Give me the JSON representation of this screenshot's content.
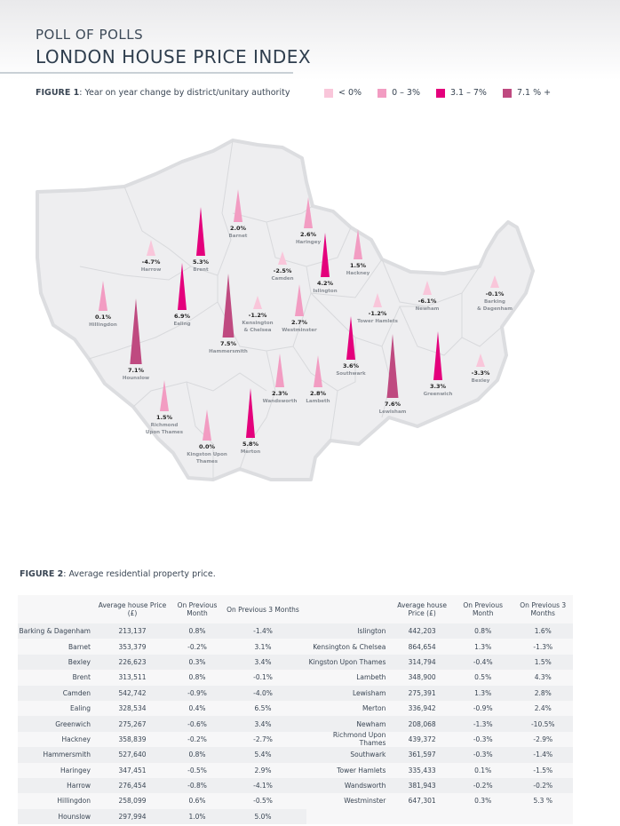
{
  "header": {
    "kicker": "POLL OF POLLS",
    "title": "LONDON HOUSE PRICE INDEX"
  },
  "figure1": {
    "label": "FIGURE 1",
    "caption": ": Year on year change by district/unitary authority"
  },
  "chart_data": [
    {
      "type": "map",
      "title": "Year on year change by district/unitary authority",
      "legend": [
        {
          "label": "< 0%",
          "color": "#f9c6da"
        },
        {
          "label": "0 – 3%",
          "color": "#f29cc2"
        },
        {
          "label": "3.1 – 7%",
          "color": "#e4007c"
        },
        {
          "label": "7.1 % +",
          "color": "#bf4a80"
        }
      ],
      "districts": [
        {
          "name": "Harrow",
          "value": "-4.7%",
          "v": -4.7
        },
        {
          "name": "Barnet",
          "value": "2.0%",
          "v": 2.0
        },
        {
          "name": "Haringey",
          "value": "2.6%",
          "v": 2.6
        },
        {
          "name": "Brent",
          "value": "5.3%",
          "v": 5.3
        },
        {
          "name": "Camden",
          "value": "-2.5%",
          "v": -2.5
        },
        {
          "name": "Islington",
          "value": "4.2%",
          "v": 4.2
        },
        {
          "name": "Hackney",
          "value": "1.5%",
          "v": 1.5
        },
        {
          "name": "Hillingdon",
          "value": "0.1%",
          "v": 0.1
        },
        {
          "name": "Ealing",
          "value": "6.9%",
          "v": 6.9
        },
        {
          "name": "Hammersmith",
          "value": "7.5%",
          "v": 7.5
        },
        {
          "name": "Kensington & Chelsea",
          "value": "-1.2%",
          "v": -1.2
        },
        {
          "name": "Westminster",
          "value": "2.7%",
          "v": 2.7
        },
        {
          "name": "Tower Hamlets",
          "value": "-1.2%",
          "v": -1.2
        },
        {
          "name": "Newham",
          "value": "-6.1%",
          "v": -6.1
        },
        {
          "name": "Barking & Dagenham",
          "value": "-0.1%",
          "v": -0.1
        },
        {
          "name": "Hounslow",
          "value": "7.1%",
          "v": 7.1
        },
        {
          "name": "Southwark",
          "value": "3.6%",
          "v": 3.6
        },
        {
          "name": "Wandsworth",
          "value": "2.3%",
          "v": 2.3
        },
        {
          "name": "Lambeth",
          "value": "2.8%",
          "v": 2.8
        },
        {
          "name": "Lewisham",
          "value": "7.6%",
          "v": 7.6
        },
        {
          "name": "Greenwich",
          "value": "3.3%",
          "v": 3.3
        },
        {
          "name": "Bexley",
          "value": "-3.3%",
          "v": -3.3
        },
        {
          "name": "Richmond Upon Thames",
          "value": "1.5%",
          "v": 1.5
        },
        {
          "name": "Kingston Upon Thames",
          "value": "0.0%",
          "v": 0.0
        },
        {
          "name": "Merton",
          "value": "5.8%",
          "v": 5.8
        }
      ]
    },
    {
      "type": "table",
      "title": "Average residential property price.",
      "columns": [
        "",
        "Average house Price (£)",
        "On Previous Month",
        "On Previous 3 Months"
      ],
      "left": [
        [
          "Barking & Dagenham",
          "213,137",
          "0.8%",
          "-1.4%"
        ],
        [
          "Barnet",
          "353,379",
          "-0.2%",
          "3.1%"
        ],
        [
          "Bexley",
          "226,623",
          "0.3%",
          "3.4%"
        ],
        [
          "Brent",
          "313,511",
          "0.8%",
          "-0.1%"
        ],
        [
          "Camden",
          "542,742",
          "-0.9%",
          "-4.0%"
        ],
        [
          "Ealing",
          "328,534",
          "0.4%",
          "6.5%"
        ],
        [
          "Greenwich",
          "275,267",
          "-0.6%",
          "3.4%"
        ],
        [
          "Hackney",
          "358,839",
          "-0.2%",
          "-2.7%"
        ],
        [
          "Hammersmith",
          "527,640",
          "0.8%",
          "5.4%"
        ],
        [
          "Haringey",
          "347,451",
          "-0.5%",
          "2.9%"
        ],
        [
          "Harrow",
          "276,454",
          "-0.8%",
          "-4.1%"
        ],
        [
          "Hillingdon",
          "258,099",
          "0.6%",
          "-0.5%"
        ],
        [
          "Hounslow",
          "297,994",
          "1.0%",
          "5.0%"
        ]
      ],
      "right": [
        [
          "Islington",
          "442,203",
          "0.8%",
          "1.6%"
        ],
        [
          "Kensington & Chelsea",
          "864,654",
          "1.3%",
          "-1.3%"
        ],
        [
          "Kingston Upon Thames",
          "314,794",
          "-0.4%",
          "1.5%"
        ],
        [
          "Lambeth",
          "348,900",
          "0.5%",
          "4.3%"
        ],
        [
          "Lewisham",
          "275,391",
          "1.3%",
          "2.8%"
        ],
        [
          "Merton",
          "336,942",
          "-0.9%",
          "2.4%"
        ],
        [
          "Newham",
          "208,068",
          "-1.3%",
          "-10.5%"
        ],
        [
          "Richmond Upon Thames",
          "439,372",
          "-0.3%",
          "-2.9%"
        ],
        [
          "Southwark",
          "361,597",
          "-0.3%",
          "-1.4%"
        ],
        [
          "Tower Hamlets",
          "335,433",
          "0.1%",
          "-1.5%"
        ],
        [
          "Wandsworth",
          "381,943",
          "-0.2%",
          "-0.2%"
        ],
        [
          "Westminster",
          "647,301",
          "0.3%",
          "5.3 %"
        ]
      ]
    }
  ],
  "figure2": {
    "label": "FIGURE 2",
    "caption": ": Average residential property price.",
    "headers": {
      "price": "Average house Price (£)",
      "month": "On Previous Month",
      "three": "On Previous 3 Months"
    }
  }
}
